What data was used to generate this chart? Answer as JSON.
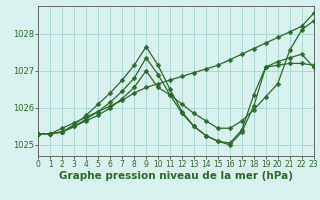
{
  "lines": [
    {
      "x": [
        0,
        1,
        2,
        3,
        4,
        5,
        6,
        7,
        8,
        9,
        10,
        11,
        12,
        13,
        14,
        15,
        16,
        17,
        18,
        19,
        20,
        21,
        22,
        23
      ],
      "y": [
        1025.3,
        1025.3,
        1025.45,
        1025.6,
        1025.75,
        1025.9,
        1026.05,
        1026.2,
        1026.4,
        1026.55,
        1026.65,
        1026.75,
        1026.85,
        1026.95,
        1027.05,
        1027.15,
        1027.3,
        1027.45,
        1027.6,
        1027.75,
        1027.9,
        1028.05,
        1028.2,
        1028.55
      ]
    },
    {
      "x": [
        0,
        1,
        2,
        3,
        4,
        5,
        6,
        7,
        8,
        9,
        10,
        11,
        12,
        13,
        14,
        15,
        16,
        17,
        18,
        19,
        20,
        21,
        22,
        23
      ],
      "y": [
        1025.3,
        1025.3,
        1025.35,
        1025.5,
        1025.65,
        1025.8,
        1026.0,
        1026.25,
        1026.55,
        1027.0,
        1026.55,
        1026.35,
        1026.1,
        1025.85,
        1025.65,
        1025.45,
        1025.45,
        1025.65,
        1025.95,
        1026.3,
        1026.65,
        1027.55,
        1028.1,
        1028.35
      ]
    },
    {
      "x": [
        0,
        1,
        2,
        3,
        4,
        5,
        6,
        7,
        8,
        9,
        10,
        11,
        12,
        13,
        14,
        15,
        16,
        17,
        18,
        19,
        20,
        21,
        22,
        23
      ],
      "y": [
        1025.3,
        1025.3,
        1025.35,
        1025.5,
        1025.7,
        1025.9,
        1026.15,
        1026.45,
        1026.8,
        1027.35,
        1026.9,
        1026.35,
        1025.85,
        1025.5,
        1025.25,
        1025.1,
        1025.05,
        1025.4,
        1026.35,
        1027.1,
        1027.25,
        1027.35,
        1027.45,
        1027.1
      ]
    },
    {
      "x": [
        0,
        1,
        2,
        3,
        4,
        5,
        6,
        7,
        8,
        9,
        10,
        11,
        12,
        13,
        14,
        15,
        16,
        17,
        18,
        19,
        20,
        21,
        22,
        23
      ],
      "y": [
        1025.3,
        1025.3,
        1025.35,
        1025.55,
        1025.8,
        1026.1,
        1026.4,
        1026.75,
        1027.15,
        1027.65,
        1027.15,
        1026.5,
        1025.9,
        1025.5,
        1025.25,
        1025.1,
        1025.0,
        1025.35,
        1026.05,
        1027.1,
        1027.15,
        1027.2,
        1027.2,
        1027.15
      ]
    }
  ],
  "line_color": "#2d6a2d",
  "marker": "D",
  "marker_size": 2.5,
  "line_width": 0.9,
  "xlim": [
    0,
    23
  ],
  "ylim": [
    1024.7,
    1028.75
  ],
  "xticks": [
    0,
    1,
    2,
    3,
    4,
    5,
    6,
    7,
    8,
    9,
    10,
    11,
    12,
    13,
    14,
    15,
    16,
    17,
    18,
    19,
    20,
    21,
    22,
    23
  ],
  "yticks": [
    1025,
    1026,
    1027,
    1028
  ],
  "xlabel": "Graphe pression niveau de la mer (hPa)",
  "bg_color": "#d8f0ee",
  "grid_color": "#a8d4d0",
  "axis_color": "#666666",
  "label_color": "#2d6a2d",
  "xlabel_fontsize": 7.5,
  "tick_fontsize": 6.0,
  "xtick_fontsize": 5.5
}
